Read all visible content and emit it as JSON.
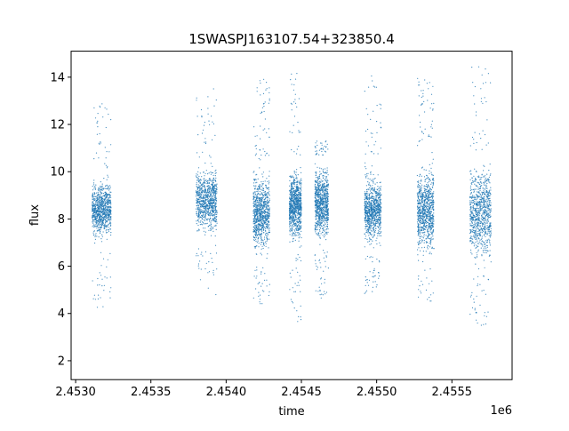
{
  "chart_data": {
    "type": "scatter",
    "title": "1SWASPJ163107.54+323850.4",
    "xlabel": "time",
    "ylabel": "flux",
    "x_offset_label": "1e6",
    "xlim": [
      2452970,
      2455900
    ],
    "ylim": [
      1.2,
      15.1
    ],
    "xticks": [
      2453000,
      2453500,
      2454000,
      2454500,
      2455000,
      2455500
    ],
    "xtick_labels": [
      "2.4530",
      "2.4535",
      "2.4540",
      "2.4545",
      "2.4550",
      "2.4555"
    ],
    "yticks": [
      2,
      4,
      6,
      8,
      10,
      12,
      14
    ],
    "ytick_labels": [
      "2",
      "4",
      "6",
      "8",
      "10",
      "12",
      "14"
    ],
    "grid": false,
    "legend": "none",
    "marker_color": "#1f77b4",
    "segments": [
      {
        "x_start": 2453110,
        "x_end": 2453235,
        "y_low": 6.7,
        "y_high": 10.1,
        "outlier_low": 4.1,
        "outlier_high": 12.9
      },
      {
        "x_start": 2453800,
        "x_end": 2453940,
        "y_low": 6.9,
        "y_high": 10.6,
        "outlier_low": 4.8,
        "outlier_high": 13.6
      },
      {
        "x_start": 2454180,
        "x_end": 2454290,
        "y_low": 6.0,
        "y_high": 10.5,
        "outlier_low": 4.4,
        "outlier_high": 14.4
      },
      {
        "x_start": 2454420,
        "x_end": 2454500,
        "y_low": 6.5,
        "y_high": 10.6,
        "outlier_low": 3.6,
        "outlier_high": 14.2
      },
      {
        "x_start": 2454590,
        "x_end": 2454680,
        "y_low": 6.6,
        "y_high": 10.7,
        "outlier_low": 4.6,
        "outlier_high": 11.3
      },
      {
        "x_start": 2454920,
        "x_end": 2455030,
        "y_low": 6.5,
        "y_high": 10.2,
        "outlier_low": 4.8,
        "outlier_high": 14.2
      },
      {
        "x_start": 2455270,
        "x_end": 2455380,
        "y_low": 5.9,
        "y_high": 10.8,
        "outlier_low": 4.5,
        "outlier_high": 14.1
      },
      {
        "x_start": 2455620,
        "x_end": 2455760,
        "y_low": 5.6,
        "y_high": 10.9,
        "outlier_low": 3.5,
        "outlier_high": 14.5
      }
    ]
  }
}
